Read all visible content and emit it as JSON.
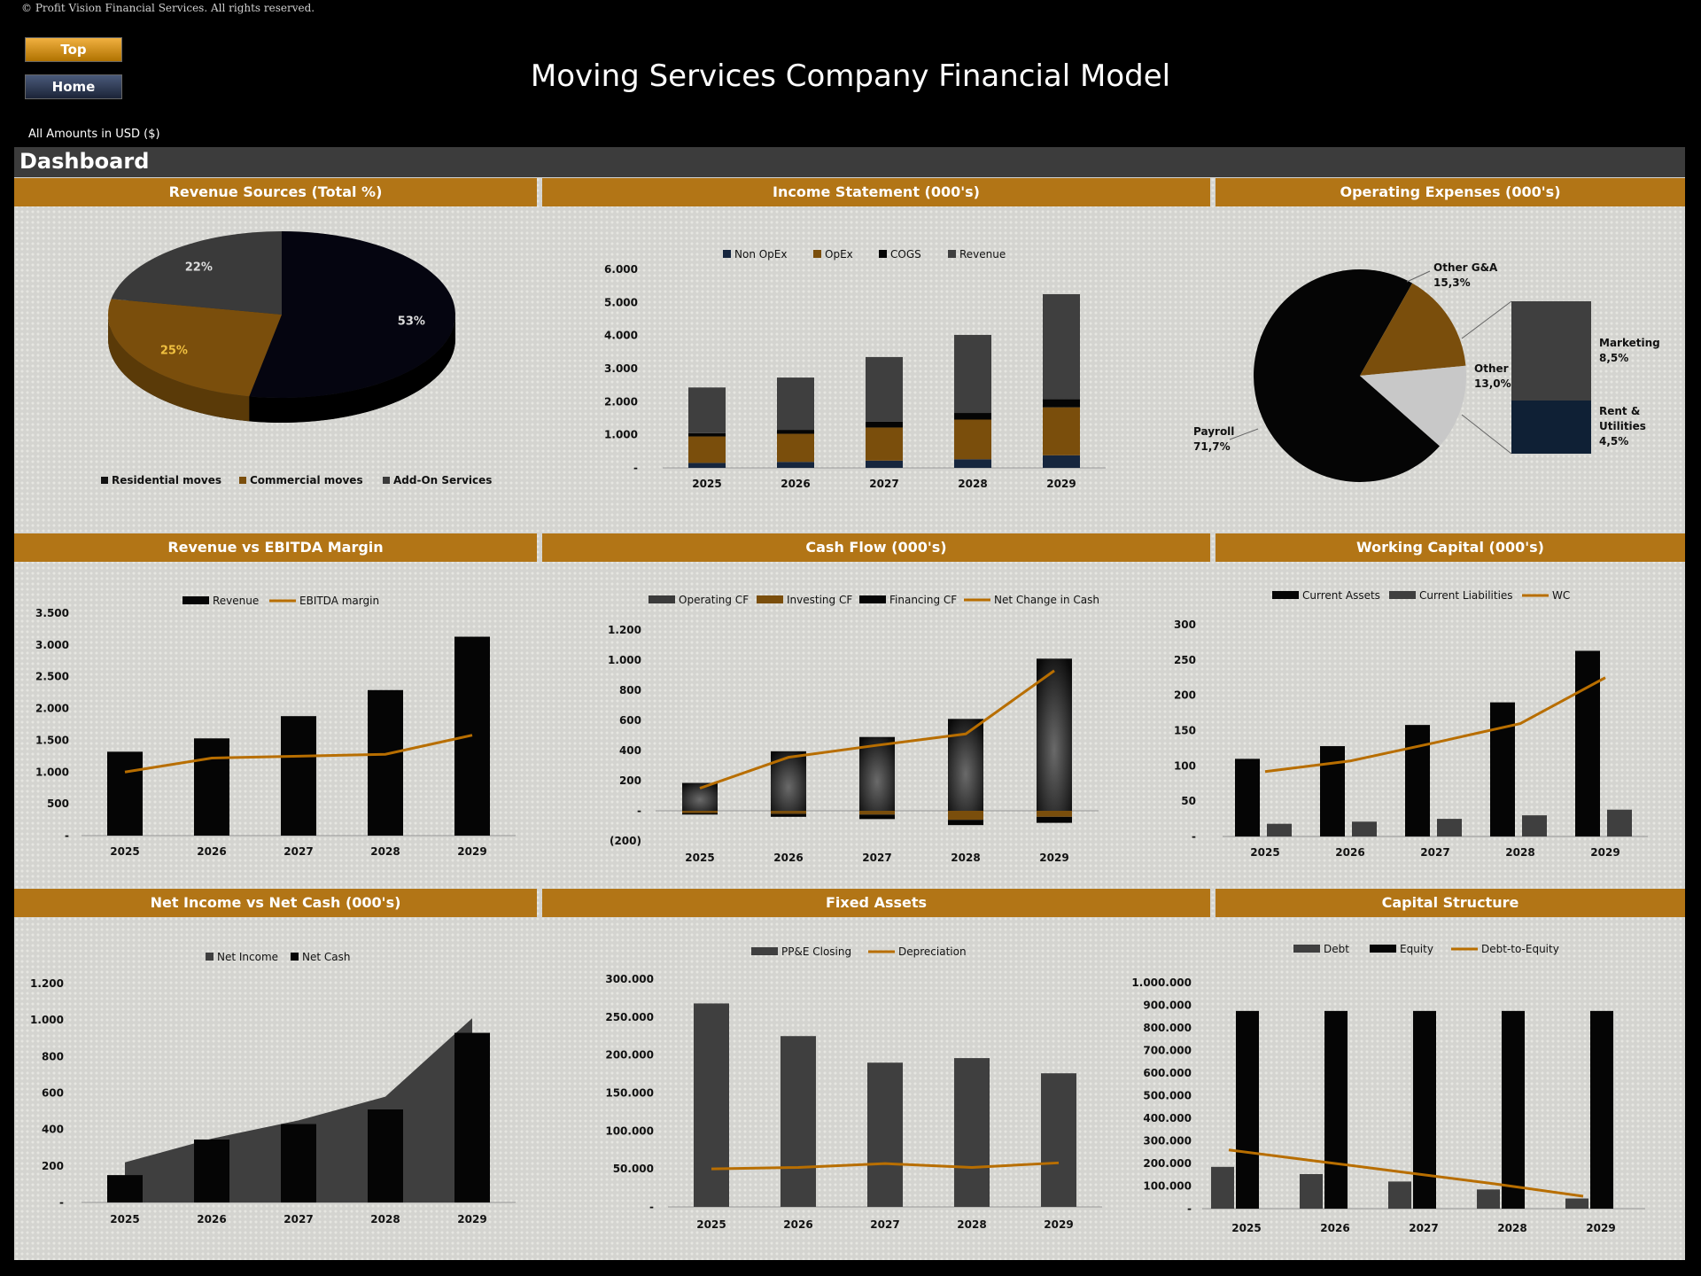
{
  "header": {
    "copyright": "© Profit Vision Financial Services. All rights reserved.",
    "top_button": "Top",
    "home_button": "Home",
    "title": "Moving Services Company Financial Model",
    "currency_note": "All Amounts in  USD ($)",
    "dashboard_label": "Dashboard"
  },
  "panels": {
    "revenue_sources": "Revenue Sources (Total %)",
    "income_statement": "Income Statement (000's)",
    "operating_expenses": "Operating Expenses (000's)",
    "revenue_ebitda": "Revenue vs EBITDA Margin",
    "cash_flow": "Cash Flow (000's)",
    "working_capital": "Working Capital (000's)",
    "net_income_cash": "Net Income vs Net Cash (000's)",
    "fixed_assets": "Fixed Assets",
    "capital_structure": "Capital Structure"
  },
  "chart_data": [
    {
      "id": "revenue_sources",
      "type": "pie",
      "title": "Revenue Sources (Total %)",
      "labels": [
        "Residential moves",
        "Commercial moves",
        "Add-On Services"
      ],
      "values": [
        53,
        25,
        22
      ],
      "data_labels": [
        "53%",
        "25%",
        "22%"
      ],
      "colors": [
        "#050510",
        "#7a4e0c",
        "#3a3a3a"
      ],
      "legend": "bottom"
    },
    {
      "id": "income_statement",
      "type": "bar",
      "stacked": true,
      "title": "Income Statement (000's)",
      "categories": [
        "2025",
        "2026",
        "2027",
        "2028",
        "2029"
      ],
      "series": [
        {
          "name": "Non OpEx",
          "color": "#16263e",
          "values": [
            150,
            180,
            220,
            260,
            380
          ]
        },
        {
          "name": "OpEx",
          "color": "#7a4e0c",
          "values": [
            800,
            850,
            1000,
            1200,
            1450
          ]
        },
        {
          "name": "COGS",
          "color": "#050505",
          "values": [
            100,
            120,
            180,
            200,
            250
          ]
        },
        {
          "name": "Revenue",
          "color": "#3f3f3f",
          "values": [
            1380,
            1580,
            1950,
            2360,
            3170
          ]
        }
      ],
      "ylim": [
        0,
        6000
      ],
      "yticks": [
        0,
        1000,
        2000,
        3000,
        4000,
        5000,
        6000
      ],
      "ytick_labels": [
        "-",
        "1.000",
        "2.000",
        "3.000",
        "4.000",
        "5.000",
        "6.000"
      ],
      "legend": "top"
    },
    {
      "id": "operating_expenses",
      "type": "pie",
      "title": "Operating Expenses (000's)",
      "labels": [
        "Payroll",
        "Other G&A",
        "Other",
        "Marketing",
        "Rent & Utilities"
      ],
      "values": [
        71.7,
        15.3,
        13.0,
        8.5,
        4.5
      ],
      "data_labels": [
        "Payroll 71,7%",
        "Other G&A 15,3%",
        "Other 13,0%",
        "Marketing 8,5%",
        "Rent & Utilities 4,5%"
      ],
      "note": "pie of pie: Other 13,0% split into Marketing 8,5% and Rent & Utilities 4,5%"
    },
    {
      "id": "revenue_ebitda",
      "type": "bar",
      "title": "Revenue vs EBITDA Margin",
      "categories": [
        "2025",
        "2026",
        "2027",
        "2028",
        "2029"
      ],
      "series": [
        {
          "name": "Revenue",
          "color": "#050505",
          "values": [
            1320,
            1530,
            1880,
            2290,
            3130
          ]
        },
        {
          "name": "EBITDA margin",
          "color": "#b86e00",
          "type": "line",
          "values": [
            1000,
            1220,
            1250,
            1280,
            1580
          ]
        }
      ],
      "ylim": [
        0,
        3500
      ],
      "yticks": [
        0,
        500,
        1000,
        1500,
        2000,
        2500,
        3000,
        3500
      ],
      "ytick_labels": [
        "-",
        "500",
        "1.000",
        "1.500",
        "2.000",
        "2.500",
        "3.000",
        "3.500"
      ],
      "legend": "top"
    },
    {
      "id": "cash_flow",
      "type": "bar",
      "stacked": true,
      "title": "Cash Flow (000's)",
      "categories": [
        "2025",
        "2026",
        "2027",
        "2028",
        "2029"
      ],
      "series": [
        {
          "name": "Operating CF",
          "color": "#3a3a3a",
          "values": [
            185,
            395,
            490,
            610,
            1010
          ]
        },
        {
          "name": "Investing CF",
          "color": "#7a4e0c",
          "values": [
            -15,
            -20,
            -25,
            -60,
            -40
          ]
        },
        {
          "name": "Financing CF",
          "color": "#050505",
          "values": [
            -10,
            -20,
            -30,
            -35,
            -40
          ]
        },
        {
          "name": "Net Change in Cash",
          "color": "#b86e00",
          "type": "line",
          "values": [
            150,
            355,
            435,
            510,
            930
          ]
        }
      ],
      "ylim": [
        -200,
        1200
      ],
      "yticks": [
        -200,
        0,
        200,
        400,
        600,
        800,
        1000,
        1200
      ],
      "ytick_labels": [
        "(200)",
        "-",
        "200",
        "400",
        "600",
        "800",
        "1.000",
        "1.200"
      ],
      "legend": "top"
    },
    {
      "id": "working_capital",
      "type": "bar",
      "title": "Working Capital (000's)",
      "categories": [
        "2025",
        "2026",
        "2027",
        "2028",
        "2029"
      ],
      "series": [
        {
          "name": "Current Assets",
          "color": "#050505",
          "values": [
            110,
            128,
            158,
            190,
            263
          ]
        },
        {
          "name": "Current Liabilities",
          "color": "#3f3f3f",
          "values": [
            18,
            21,
            25,
            30,
            38
          ]
        },
        {
          "name": "WC",
          "color": "#b86e00",
          "type": "line",
          "values": [
            92,
            107,
            133,
            160,
            225
          ]
        }
      ],
      "ylim": [
        0,
        300
      ],
      "yticks": [
        0,
        50,
        100,
        150,
        200,
        250,
        300
      ],
      "ytick_labels": [
        "-",
        "50",
        "100",
        "150",
        "200",
        "250",
        "300"
      ],
      "legend": "top"
    },
    {
      "id": "net_income_cash",
      "type": "area",
      "title": "Net Income vs Net Cash (000's)",
      "categories": [
        "2025",
        "2026",
        "2027",
        "2028",
        "2029"
      ],
      "series": [
        {
          "name": "Net Income",
          "color": "#3f3f3f",
          "type": "area",
          "values": [
            220,
            350,
            450,
            580,
            1010
          ]
        },
        {
          "name": "Net Cash",
          "color": "#050505",
          "type": "bar",
          "values": [
            150,
            345,
            430,
            510,
            930
          ]
        }
      ],
      "ylim": [
        0,
        1200
      ],
      "yticks": [
        0,
        200,
        400,
        600,
        800,
        1000,
        1200
      ],
      "ytick_labels": [
        "-",
        "200",
        "400",
        "600",
        "800",
        "1.000",
        "1.200"
      ],
      "legend": "top"
    },
    {
      "id": "fixed_assets",
      "type": "bar",
      "title": "Fixed Assets",
      "categories": [
        "2025",
        "2026",
        "2027",
        "2028",
        "2029"
      ],
      "series": [
        {
          "name": "PP&E Closing",
          "color": "#3f3f3f",
          "values": [
            268000,
            225000,
            190000,
            196000,
            176000
          ]
        },
        {
          "name": "Depreciation",
          "color": "#b86e00",
          "type": "line",
          "values": [
            50000,
            52000,
            57000,
            52000,
            58000
          ]
        }
      ],
      "ylim": [
        0,
        300000
      ],
      "yticks": [
        0,
        50000,
        100000,
        150000,
        200000,
        250000,
        300000
      ],
      "ytick_labels": [
        "-",
        "50.000",
        "100.000",
        "150.000",
        "200.000",
        "250.000",
        "300.000"
      ],
      "legend": "top"
    },
    {
      "id": "capital_structure",
      "type": "bar",
      "title": "Capital Structure",
      "categories": [
        "2025",
        "2026",
        "2027",
        "2028",
        "2029"
      ],
      "series": [
        {
          "name": "Debt",
          "color": "#3f3f3f",
          "values": [
            185000,
            153000,
            120000,
            85000,
            45000
          ]
        },
        {
          "name": "Equity",
          "color": "#050505",
          "values": [
            875000,
            875000,
            875000,
            875000,
            875000
          ]
        },
        {
          "name": "Debt-to-Equity",
          "color": "#b86e00",
          "type": "line",
          "values": [
            260000,
            210000,
            160000,
            110000,
            55000
          ]
        }
      ],
      "ylim": [
        0,
        1000000
      ],
      "yticks": [
        0,
        100000,
        200000,
        300000,
        400000,
        500000,
        600000,
        700000,
        800000,
        900000,
        1000000
      ],
      "ytick_labels": [
        "-",
        "100.000",
        "200.000",
        "300.000",
        "400.000",
        "500.000",
        "600.000",
        "700.000",
        "800.000",
        "900.000",
        "1.000.000"
      ],
      "legend": "top"
    }
  ]
}
